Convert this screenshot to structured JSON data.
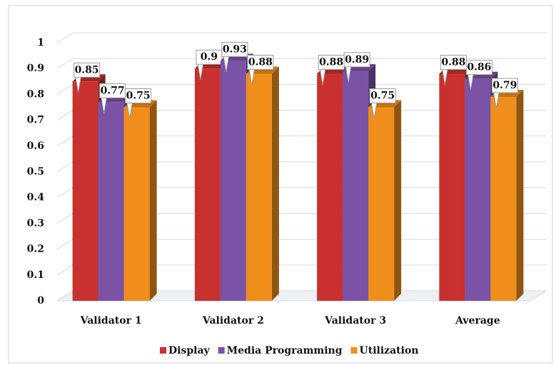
{
  "chart_data": {
    "type": "bar3d",
    "categories": [
      "Validator 1",
      "Validator 2",
      "Validator 3",
      "Average"
    ],
    "series": [
      {
        "name": "Display",
        "color": "#c8312f",
        "values": [
          0.85,
          0.9,
          0.88,
          0.88
        ]
      },
      {
        "name": "Media Programming",
        "color": "#7a52a6",
        "values": [
          0.77,
          0.93,
          0.89,
          0.86
        ]
      },
      {
        "name": "Utilization",
        "color": "#f08e1c",
        "values": [
          0.75,
          0.88,
          0.75,
          0.79
        ]
      }
    ],
    "ylim": [
      0,
      1
    ],
    "yticks": [
      0,
      0.1,
      0.2,
      0.3,
      0.4,
      0.5,
      0.6,
      0.7,
      0.8,
      0.9,
      1
    ],
    "grid": true,
    "legend": "bottom",
    "data_labels": true
  }
}
